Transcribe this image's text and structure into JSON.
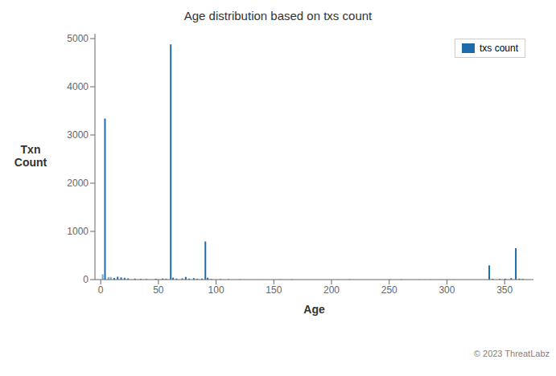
{
  "chart_data": {
    "type": "bar",
    "title": "Age distribution based on txs count",
    "xlabel": "Age",
    "ylabel": "Txn\nCount",
    "annotation": "© 2023 ThreatLabz",
    "x": [
      2,
      4,
      7,
      9,
      12,
      15,
      18,
      21,
      24,
      30,
      35,
      40,
      48,
      54,
      57,
      61,
      63,
      66,
      71,
      74,
      77,
      81,
      84,
      88,
      91,
      93,
      96,
      104,
      111,
      121,
      156,
      166,
      206,
      216,
      251,
      261,
      276,
      286,
      296,
      306,
      337,
      340,
      346,
      351,
      356,
      360,
      363,
      366
    ],
    "series": [
      {
        "name": "txs count",
        "color": "#1f6aad",
        "colors": [
          "#6ab0d9",
          "#1f6aad",
          "#6ab0d9",
          "#6ab0d9",
          "#1f6aad",
          "#1f6aad",
          "#1f6aad",
          "#1f6aad",
          "#1f6aad",
          "#1f6aad",
          "#1f6aad",
          "#1f6aad",
          "#1f6aad",
          "#1f6aad",
          "#1f6aad",
          "#1f6aad",
          "#1f6aad",
          "#1f6aad",
          "#1f6aad",
          "#1f6aad",
          "#1f6aad",
          "#1f6aad",
          "#1f6aad",
          "#1f6aad",
          "#1f6aad",
          "#1f6aad",
          "#1f6aad",
          "#1f6aad",
          "#1f6aad",
          "#1f6aad",
          "#1f6aad",
          "#1f6aad",
          "#1f6aad",
          "#1f6aad",
          "#1f6aad",
          "#1f6aad",
          "#1f6aad",
          "#1f6aad",
          "#1f6aad",
          "#1f6aad",
          "#1f6aad",
          "#1f6aad",
          "#1f6aad",
          "#1f6aad",
          "#1f6aad",
          "#1f6aad",
          "#1f6aad",
          "#1f6aad"
        ],
        "values": [
          110,
          3340,
          50,
          55,
          35,
          60,
          45,
          38,
          25,
          20,
          15,
          12,
          18,
          22,
          18,
          4880,
          40,
          20,
          25,
          55,
          20,
          30,
          18,
          22,
          790,
          40,
          12,
          10,
          8,
          6,
          5,
          4,
          3,
          5,
          4,
          4,
          3,
          3,
          3,
          3,
          295,
          15,
          12,
          18,
          30,
          650,
          20,
          15
        ]
      }
    ],
    "xlim": [
      -5,
      375
    ],
    "ylim": [
      0,
      5100
    ],
    "xticks": [
      0,
      50,
      100,
      150,
      200,
      250,
      300,
      350
    ],
    "yticks": [
      0,
      1000,
      2000,
      3000,
      4000,
      5000
    ],
    "legend": "upper right",
    "grid": false
  }
}
